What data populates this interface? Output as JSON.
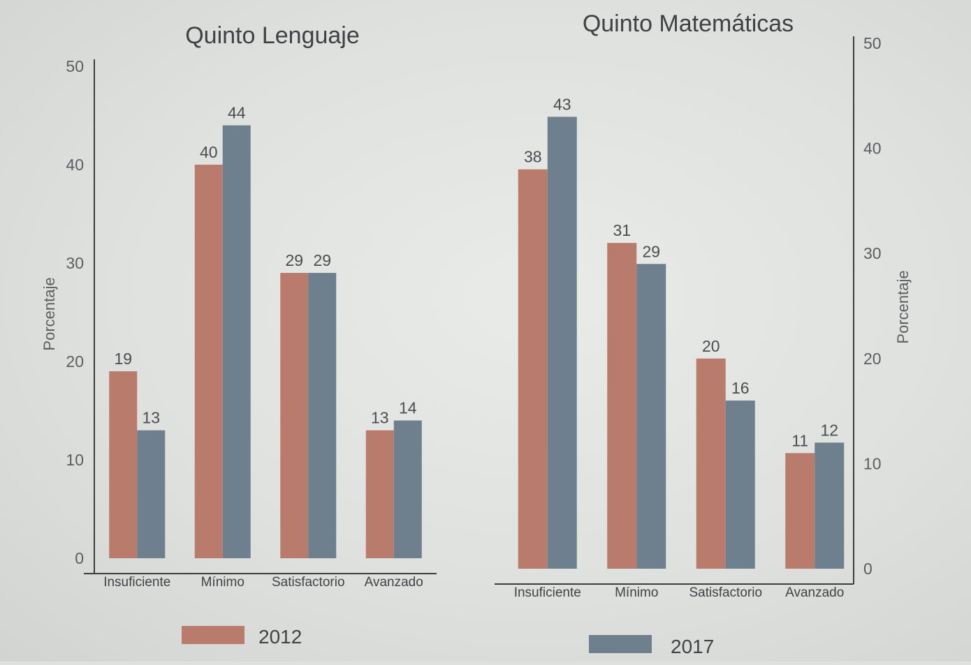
{
  "chart_data": [
    {
      "type": "bar",
      "title": "Quinto Lenguaje",
      "ylabel": "Porcentaje",
      "ylim": [
        0,
        50
      ],
      "yticks": [
        "0",
        "10",
        "20",
        "30",
        "40",
        "50"
      ],
      "y_axis_side": "left",
      "categories": [
        "Insuficiente",
        "Mínimo",
        "Satisfactorio",
        "Avanzado"
      ],
      "series": [
        {
          "name": "2012",
          "values": [
            19,
            40,
            29,
            13
          ]
        },
        {
          "name": "2017",
          "values": [
            13,
            44,
            29,
            14
          ]
        }
      ],
      "data_labels": true,
      "grid": false
    },
    {
      "type": "bar",
      "title": "Quinto Matemáticas",
      "ylabel": "Porcentaje",
      "ylim": [
        0,
        50
      ],
      "yticks": [
        "0",
        "10",
        "20",
        "30",
        "40",
        "50"
      ],
      "y_axis_side": "right",
      "categories": [
        "Insuficiente",
        "Mínimo",
        "Satisfactorio",
        "Avanzado"
      ],
      "series": [
        {
          "name": "2012",
          "values": [
            38,
            31,
            20,
            11
          ]
        },
        {
          "name": "2017",
          "values": [
            43,
            29,
            16,
            12
          ]
        }
      ],
      "data_labels": true,
      "grid": false
    }
  ],
  "legend": {
    "placement": "bottom",
    "items": [
      {
        "label": "2012",
        "color": "#b87b6c"
      },
      {
        "label": "2017",
        "color": "#6e7f8e"
      }
    ]
  },
  "colors": {
    "series_2012": "#b87b6c",
    "series_2017": "#6e7f8e",
    "axis": "#3a3c40"
  }
}
